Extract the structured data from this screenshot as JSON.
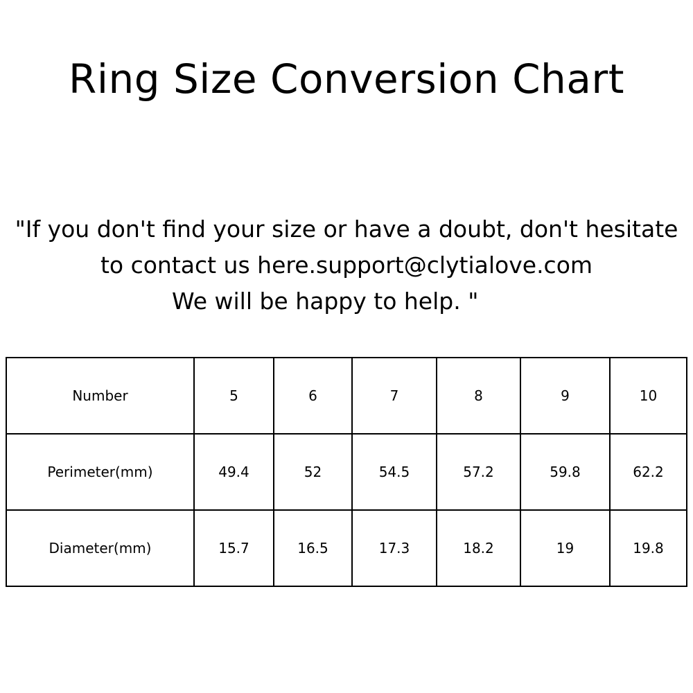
{
  "title": "Ring Size Conversion Chart",
  "note": {
    "line1": "\"If you don't find your size or have a doubt, don't hesitate",
    "line2": "to contact us here.support@clytialove.com",
    "line3": "We will be happy to help. \""
  },
  "table": {
    "rows": [
      [
        "Number",
        "5",
        "6",
        "7",
        "8",
        "9",
        "10"
      ],
      [
        "Perimeter(mm)",
        "49.4",
        "52",
        "54.5",
        "57.2",
        "59.8",
        "62.2"
      ],
      [
        "Diameter(mm)",
        "15.7",
        "16.5",
        "17.3",
        "18.2",
        "19",
        "19.8"
      ]
    ]
  }
}
